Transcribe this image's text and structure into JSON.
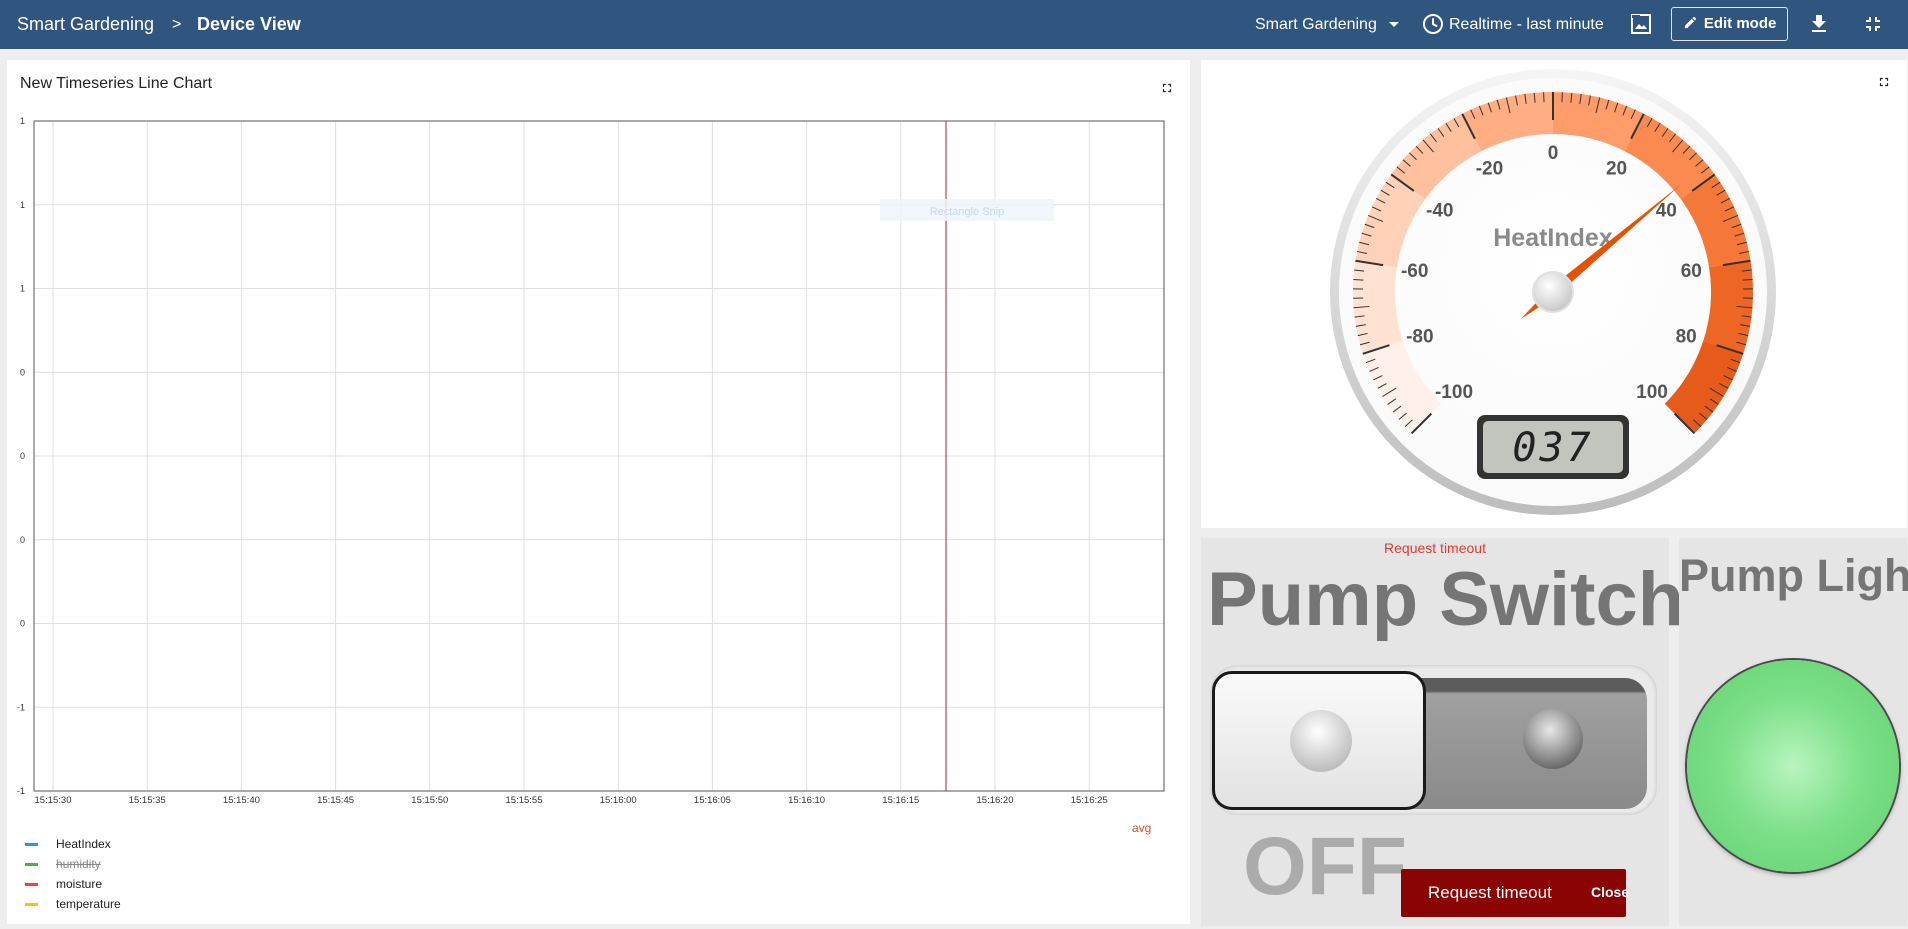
{
  "header": {
    "breadcrumb_root": "Smart Gardening",
    "breadcrumb_sep": ">",
    "breadcrumb_current": "Device View",
    "dashboard_select": "Smart Gardening",
    "timewindow": "Realtime - last minute",
    "edit_mode": "Edit mode"
  },
  "chart": {
    "title": "New Timeseries Line Chart",
    "tooltip_hint": "Rectangle Snip",
    "aggregation": "avg",
    "legend": [
      {
        "label": "HeatIndex",
        "color": "#2196f3",
        "hidden": false
      },
      {
        "label": "humidity",
        "color": "#4caf50",
        "hidden": true
      },
      {
        "label": "moisture",
        "color": "#f44336",
        "hidden": false
      },
      {
        "label": "temperature",
        "color": "#ffc107",
        "hidden": false
      }
    ]
  },
  "chart_data": {
    "type": "line",
    "title": "New Timeseries Line Chart",
    "xlabel": "",
    "ylabel": "",
    "x_ticks": [
      "15:15:30",
      "15:15:35",
      "15:15:40",
      "15:15:45",
      "15:15:50",
      "15:15:55",
      "15:16:00",
      "15:16:05",
      "15:16:10",
      "15:16:15",
      "15:16:20",
      "15:16:25"
    ],
    "y_ticks": [
      "1",
      "1",
      "1",
      "0",
      "0",
      "0",
      "0",
      "-1",
      "-1"
    ],
    "ylim": [
      -1,
      1
    ],
    "grid": true,
    "legend_position": "bottom-left",
    "series": [
      {
        "name": "HeatIndex",
        "values": []
      },
      {
        "name": "humidity",
        "values": []
      },
      {
        "name": "moisture",
        "values": []
      },
      {
        "name": "temperature",
        "values": []
      }
    ],
    "marker_time": "15:16:17.5"
  },
  "gauge": {
    "title": "HeatIndex",
    "value": 37,
    "display": "037",
    "min": -100,
    "max": 100,
    "major_ticks": [
      "-100",
      "-80",
      "-60",
      "-40",
      "-20",
      "0",
      "20",
      "40",
      "60",
      "80",
      "100"
    ],
    "needle_color": "#e65100"
  },
  "pump_switch": {
    "status_text": "Request timeout",
    "title": "Pump Switch",
    "state_label": "OFF"
  },
  "pump_light": {
    "title": "Pump Light",
    "on": true,
    "color": "#7ee08a"
  },
  "toast": {
    "message": "Request timeout",
    "close_label": "Close"
  }
}
